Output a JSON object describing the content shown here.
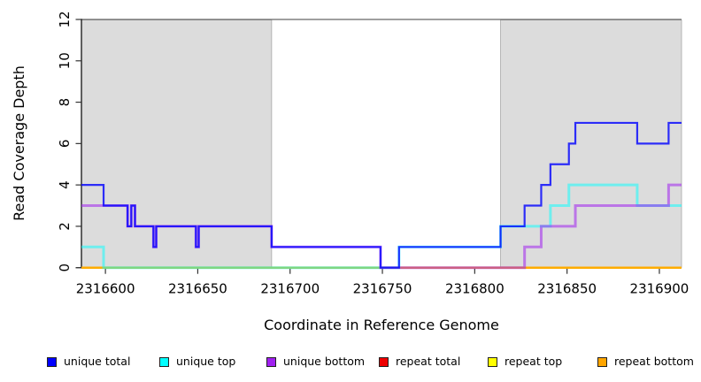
{
  "chart_data": {
    "type": "line",
    "step": true,
    "title": "",
    "xlabel": "Coordinate in Reference Genome",
    "ylabel": "Read Coverage Depth",
    "xlim": [
      2316587,
      2316912
    ],
    "ylim": [
      0,
      12
    ],
    "x_ticks": [
      2316600,
      2316650,
      2316700,
      2316750,
      2316800,
      2316850,
      2316900
    ],
    "y_ticks": [
      0,
      2,
      4,
      6,
      8,
      10,
      12
    ],
    "grid": false,
    "legend_position": "bottom",
    "background_color": "#ffffff",
    "shaded_regions": [
      {
        "name": "repeat-region-left",
        "x0": 2316587,
        "x1": 2316690,
        "color": "#dcdcdc",
        "edge": "#a8a8a8"
      },
      {
        "name": "repeat-region-right",
        "x0": 2316814,
        "x1": 2316912,
        "color": "#dcdcdc",
        "edge": "#a8a8a8"
      }
    ],
    "legend": [
      {
        "label": "unique total",
        "color": "#0000ff"
      },
      {
        "label": "unique top",
        "color": "#00ffff"
      },
      {
        "label": "unique bottom",
        "color": "#a020f0"
      },
      {
        "label": "repeat total",
        "color": "#ee0000"
      },
      {
        "label": "repeat top",
        "color": "#ffff00"
      },
      {
        "label": "repeat bottom",
        "color": "#ffa500"
      }
    ],
    "series": [
      {
        "name": "repeat total",
        "color": "#ee0000",
        "points": [
          [
            2316587,
            0
          ],
          [
            2316912,
            0
          ]
        ]
      },
      {
        "name": "repeat top",
        "color": "#ffff00",
        "points": [
          [
            2316587,
            0
          ],
          [
            2316912,
            0
          ]
        ]
      },
      {
        "name": "repeat bottom",
        "color": "#ffa500",
        "points": [
          [
            2316587,
            0
          ],
          [
            2316912,
            0
          ]
        ]
      },
      {
        "name": "unique top",
        "color": "#00ffff",
        "points": [
          [
            2316587,
            1
          ],
          [
            2316599,
            0
          ],
          [
            2316759,
            1
          ],
          [
            2316814,
            2
          ],
          [
            2316841,
            3
          ],
          [
            2316851,
            4
          ],
          [
            2316888,
            3
          ],
          [
            2316912,
            3
          ]
        ]
      },
      {
        "name": "unique bottom",
        "color": "#a020f0",
        "points": [
          [
            2316587,
            3
          ],
          [
            2316612,
            2
          ],
          [
            2316614,
            3
          ],
          [
            2316616,
            2
          ],
          [
            2316626,
            1
          ],
          [
            2316627.5,
            2
          ],
          [
            2316649,
            1
          ],
          [
            2316650.5,
            2
          ],
          [
            2316690,
            1
          ],
          [
            2316749,
            0
          ],
          [
            2316827,
            1
          ],
          [
            2316836,
            2
          ],
          [
            2316854.5,
            3
          ],
          [
            2316905,
            4
          ],
          [
            2316912,
            4
          ]
        ]
      },
      {
        "name": "unique total",
        "color": "#0000ff",
        "points": [
          [
            2316587,
            4
          ],
          [
            2316599,
            3
          ],
          [
            2316612,
            2
          ],
          [
            2316614,
            3
          ],
          [
            2316616,
            2
          ],
          [
            2316626,
            1
          ],
          [
            2316627.5,
            2
          ],
          [
            2316649,
            1
          ],
          [
            2316650.5,
            2
          ],
          [
            2316690,
            1
          ],
          [
            2316749,
            0
          ],
          [
            2316759,
            1
          ],
          [
            2316814,
            2
          ],
          [
            2316827,
            3
          ],
          [
            2316836,
            4
          ],
          [
            2316841,
            5
          ],
          [
            2316851,
            6
          ],
          [
            2316854.5,
            7
          ],
          [
            2316888,
            6
          ],
          [
            2316905,
            7
          ],
          [
            2316912,
            7
          ]
        ]
      }
    ]
  }
}
